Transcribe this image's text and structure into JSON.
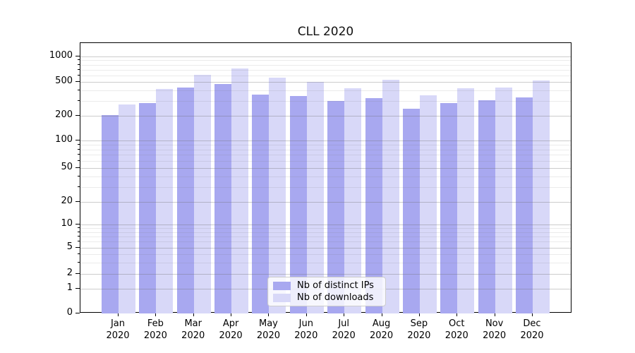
{
  "chart_data": {
    "type": "bar",
    "title": "CLL 2020",
    "categories": [
      "Jan",
      "Feb",
      "Mar",
      "Apr",
      "May",
      "Jun",
      "Jul",
      "Aug",
      "Sep",
      "Oct",
      "Nov",
      "Dec"
    ],
    "x_tick_second_line": "2020",
    "series": [
      {
        "name": "Nb of distinct IPs",
        "color": "#a8a8f0",
        "values": [
          205,
          280,
          430,
          470,
          355,
          340,
          300,
          325,
          240,
          280,
          305,
          330
        ]
      },
      {
        "name": "Nb of downloads",
        "color": "#d8d8f8",
        "values": [
          270,
          415,
          610,
          720,
          560,
          500,
          420,
          530,
          350,
          420,
          430,
          520
        ]
      }
    ],
    "yscale": "symlog",
    "ylim": [
      0,
      1400
    ],
    "y_major_ticks": [
      1000,
      500,
      200,
      100,
      50,
      20,
      10,
      5,
      2,
      1,
      0
    ],
    "y_minor_ticks": [
      3,
      4,
      6,
      7,
      8,
      9,
      30,
      40,
      60,
      70,
      80,
      90,
      300,
      400,
      600,
      700,
      800,
      900
    ],
    "grid": "horizontal major+minor, drawn above bars",
    "legend_position": "lower center inside plot"
  },
  "colors": {
    "grid_major": "rgba(110,110,110,0.35)",
    "grid_minor": "rgba(110,110,110,0.14)",
    "spine": "#000000",
    "background": "#ffffff",
    "legend_border": "#cccccc"
  }
}
